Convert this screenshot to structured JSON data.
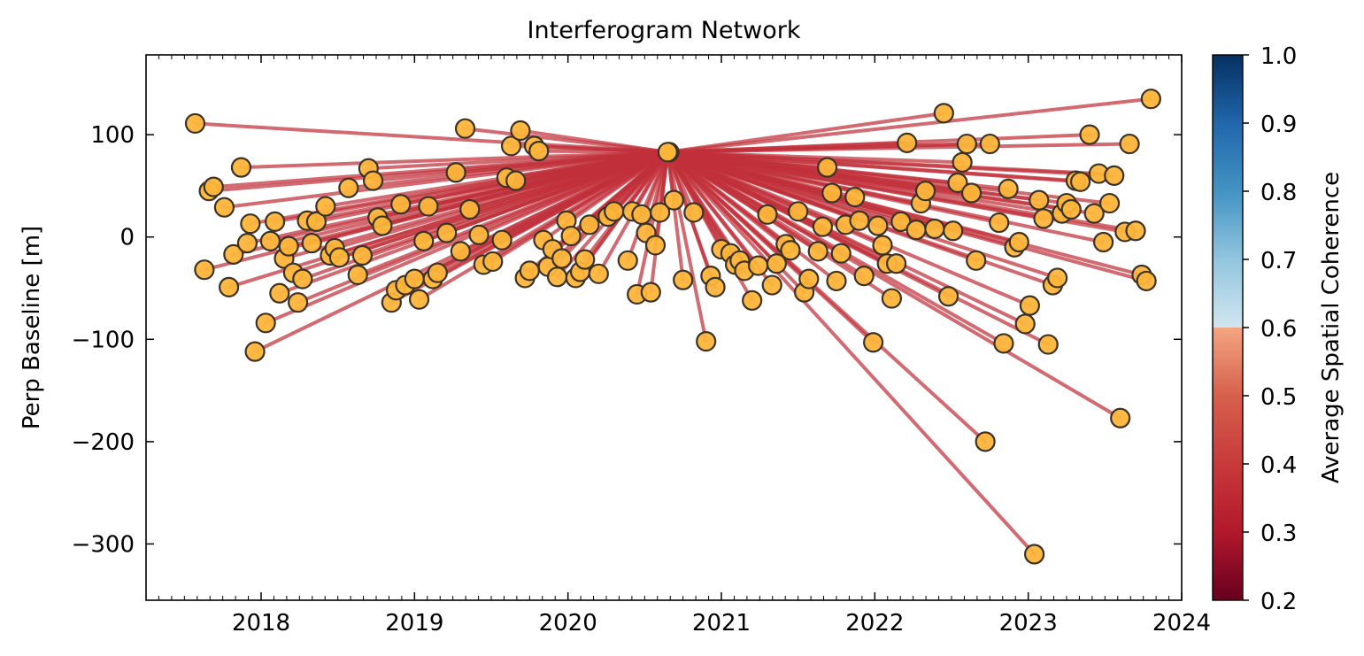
{
  "chart_data": {
    "type": "scatter",
    "title": "Interferogram Network",
    "xlabel": "",
    "ylabel": "Perp Baseline [m]",
    "xlim": [
      2017.25,
      2024.0
    ],
    "ylim": [
      -355,
      178
    ],
    "x_ticks": [
      "2018",
      "2019",
      "2020",
      "2021",
      "2022",
      "2023",
      "2024"
    ],
    "x_tick_values": [
      2018,
      2019,
      2020,
      2021,
      2022,
      2023,
      2024
    ],
    "y_ticks": [
      "100",
      "0",
      "−100",
      "−200",
      "−300"
    ],
    "y_tick_values": [
      100,
      0,
      -100,
      -200,
      -300
    ],
    "reference": {
      "x": 2020.65,
      "y": 83
    },
    "edge_coherence": 0.4,
    "edge_color": "#c1313a",
    "point_color": "#fdb53a",
    "points": [
      [
        2017.57,
        111
      ],
      [
        2017.63,
        -32
      ],
      [
        2017.66,
        45
      ],
      [
        2017.69,
        49
      ],
      [
        2017.76,
        29
      ],
      [
        2017.79,
        -49
      ],
      [
        2017.82,
        -17
      ],
      [
        2017.87,
        68
      ],
      [
        2017.91,
        -6
      ],
      [
        2017.93,
        13
      ],
      [
        2017.96,
        -112
      ],
      [
        2018.03,
        -84
      ],
      [
        2018.06,
        -4
      ],
      [
        2018.09,
        15
      ],
      [
        2018.12,
        -55
      ],
      [
        2018.15,
        -21
      ],
      [
        2018.18,
        -9
      ],
      [
        2018.21,
        -35
      ],
      [
        2018.24,
        -64
      ],
      [
        2018.27,
        -41
      ],
      [
        2018.3,
        16
      ],
      [
        2018.33,
        -6
      ],
      [
        2018.36,
        15
      ],
      [
        2018.42,
        30
      ],
      [
        2018.45,
        -18
      ],
      [
        2018.48,
        -11
      ],
      [
        2018.51,
        -20
      ],
      [
        2018.57,
        48
      ],
      [
        2018.63,
        -37
      ],
      [
        2018.66,
        -18
      ],
      [
        2018.7,
        67
      ],
      [
        2018.73,
        55
      ],
      [
        2018.76,
        19
      ],
      [
        2018.79,
        11
      ],
      [
        2018.85,
        -64
      ],
      [
        2018.88,
        -52
      ],
      [
        2018.91,
        32
      ],
      [
        2018.94,
        -47
      ],
      [
        2019.0,
        -41
      ],
      [
        2019.03,
        -61
      ],
      [
        2019.06,
        -4
      ],
      [
        2019.09,
        30
      ],
      [
        2019.12,
        -41
      ],
      [
        2019.15,
        -35
      ],
      [
        2019.21,
        4
      ],
      [
        2019.27,
        63
      ],
      [
        2019.3,
        -14
      ],
      [
        2019.33,
        106
      ],
      [
        2019.36,
        27
      ],
      [
        2019.42,
        2
      ],
      [
        2019.45,
        -27
      ],
      [
        2019.51,
        -24
      ],
      [
        2019.57,
        -3
      ],
      [
        2019.6,
        58
      ],
      [
        2019.63,
        89
      ],
      [
        2019.66,
        55
      ],
      [
        2019.69,
        104
      ],
      [
        2019.72,
        -40
      ],
      [
        2019.75,
        -33
      ],
      [
        2019.78,
        89
      ],
      [
        2019.81,
        84
      ],
      [
        2019.84,
        -3
      ],
      [
        2019.87,
        -29
      ],
      [
        2019.9,
        -12
      ],
      [
        2019.93,
        -39
      ],
      [
        2019.96,
        -21
      ],
      [
        2019.99,
        16
      ],
      [
        2020.02,
        1
      ],
      [
        2020.05,
        -40
      ],
      [
        2020.08,
        -34
      ],
      [
        2020.11,
        -22
      ],
      [
        2020.14,
        12
      ],
      [
        2020.2,
        -36
      ],
      [
        2020.26,
        20
      ],
      [
        2020.3,
        25
      ],
      [
        2020.39,
        -23
      ],
      [
        2020.42,
        25
      ],
      [
        2020.45,
        -56
      ],
      [
        2020.48,
        22
      ],
      [
        2020.51,
        4
      ],
      [
        2020.54,
        -54
      ],
      [
        2020.57,
        -8
      ],
      [
        2020.6,
        24
      ],
      [
        2020.66,
        83
      ],
      [
        2020.69,
        36
      ],
      [
        2020.75,
        -42
      ],
      [
        2020.82,
        24
      ],
      [
        2020.9,
        -102
      ],
      [
        2020.93,
        -38
      ],
      [
        2020.96,
        -49
      ],
      [
        2021.0,
        -12
      ],
      [
        2021.06,
        -16
      ],
      [
        2021.09,
        -27
      ],
      [
        2021.12,
        -23
      ],
      [
        2021.15,
        -33
      ],
      [
        2021.2,
        -62
      ],
      [
        2021.24,
        -28
      ],
      [
        2021.3,
        22
      ],
      [
        2021.33,
        -47
      ],
      [
        2021.36,
        -26
      ],
      [
        2021.42,
        -7
      ],
      [
        2021.45,
        -13
      ],
      [
        2021.5,
        25
      ],
      [
        2021.54,
        -54
      ],
      [
        2021.57,
        -41
      ],
      [
        2021.63,
        -14
      ],
      [
        2021.66,
        10
      ],
      [
        2021.69,
        68
      ],
      [
        2021.72,
        43
      ],
      [
        2021.75,
        -43
      ],
      [
        2021.78,
        -16
      ],
      [
        2021.81,
        12
      ],
      [
        2021.87,
        39
      ],
      [
        2021.9,
        16
      ],
      [
        2021.93,
        -38
      ],
      [
        2021.99,
        -103
      ],
      [
        2022.02,
        11
      ],
      [
        2022.05,
        -8
      ],
      [
        2022.08,
        -26
      ],
      [
        2022.11,
        -60
      ],
      [
        2022.14,
        -26
      ],
      [
        2022.17,
        15
      ],
      [
        2022.21,
        92
      ],
      [
        2022.27,
        7
      ],
      [
        2022.3,
        33
      ],
      [
        2022.33,
        45
      ],
      [
        2022.39,
        8
      ],
      [
        2022.45,
        121
      ],
      [
        2022.48,
        -58
      ],
      [
        2022.51,
        6
      ],
      [
        2022.54,
        53
      ],
      [
        2022.57,
        73
      ],
      [
        2022.6,
        91
      ],
      [
        2022.63,
        43
      ],
      [
        2022.66,
        -23
      ],
      [
        2022.72,
        -200
      ],
      [
        2022.75,
        91
      ],
      [
        2022.81,
        14
      ],
      [
        2022.84,
        -104
      ],
      [
        2022.87,
        47
      ],
      [
        2022.91,
        -10
      ],
      [
        2022.94,
        -5
      ],
      [
        2022.98,
        -85
      ],
      [
        2023.01,
        -67
      ],
      [
        2023.04,
        -310
      ],
      [
        2023.07,
        36
      ],
      [
        2023.1,
        18
      ],
      [
        2023.13,
        -105
      ],
      [
        2023.16,
        -47
      ],
      [
        2023.19,
        -40
      ],
      [
        2023.22,
        23
      ],
      [
        2023.25,
        33
      ],
      [
        2023.28,
        27
      ],
      [
        2023.31,
        55
      ],
      [
        2023.34,
        54
      ],
      [
        2023.4,
        100
      ],
      [
        2023.43,
        23
      ],
      [
        2023.46,
        62
      ],
      [
        2023.49,
        -5
      ],
      [
        2023.53,
        33
      ],
      [
        2023.56,
        60
      ],
      [
        2023.6,
        -177
      ],
      [
        2023.63,
        5
      ],
      [
        2023.66,
        91
      ],
      [
        2023.7,
        6
      ],
      [
        2023.74,
        -37
      ],
      [
        2023.77,
        -43
      ],
      [
        2023.8,
        135
      ]
    ],
    "colorbar": {
      "label": "Average Spatial Coherence",
      "range": [
        0.2,
        1.0
      ],
      "ticks": [
        "0.2",
        "0.3",
        "0.4",
        "0.5",
        "0.6",
        "0.7",
        "0.8",
        "0.9",
        "1.0"
      ],
      "tick_values": [
        0.2,
        0.3,
        0.4,
        0.5,
        0.6,
        0.7,
        0.8,
        0.9,
        1.0
      ],
      "colormap": "RdBu"
    }
  }
}
